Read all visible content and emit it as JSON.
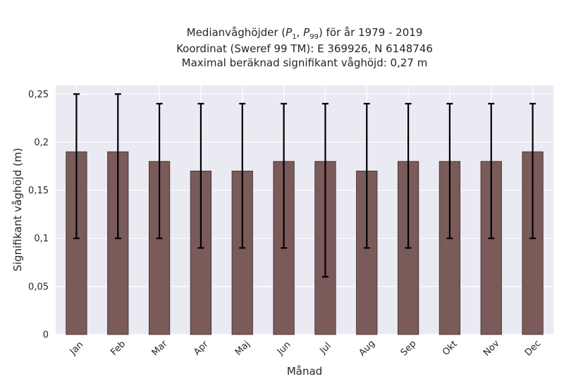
{
  "chart_data": {
    "type": "bar",
    "title_lines": [
      "Medianvåghöjder (P1, P99) för år 1979 - 2019",
      "Koordinat (Sweref 99 TM): E 369926, N 6148746",
      "Maximal beräknad signifikant våghöjd: 0,27 m"
    ],
    "xlabel": "Månad",
    "ylabel": "Signifikant våghöjd (m)",
    "categories": [
      "Jan",
      "Feb",
      "Mar",
      "Apr",
      "Maj",
      "Jun",
      "Jul",
      "Aug",
      "Sep",
      "Okt",
      "Nov",
      "Dec"
    ],
    "series": [
      {
        "values": [
          0.19,
          0.19,
          0.18,
          0.17,
          0.17,
          0.18,
          0.18,
          0.17,
          0.18,
          0.18,
          0.18,
          0.19
        ],
        "error_low": [
          0.1,
          0.1,
          0.1,
          0.09,
          0.09,
          0.09,
          0.06,
          0.09,
          0.09,
          0.1,
          0.1,
          0.1
        ],
        "error_high": [
          0.25,
          0.25,
          0.24,
          0.24,
          0.24,
          0.24,
          0.24,
          0.24,
          0.24,
          0.24,
          0.24,
          0.24
        ]
      }
    ],
    "ylim": [
      0,
      0.259
    ],
    "yticks": [
      0,
      0.05,
      0.1,
      0.15,
      0.2,
      0.25
    ],
    "ytick_labels": [
      "0",
      "0,05",
      "0,1",
      "0,15",
      "0,2",
      "0,25"
    ],
    "grid": true,
    "colors": {
      "bar": "#7b5a5a",
      "bar_edge": "#3a2a2a",
      "error_bar": "#000000",
      "plot_background": "#eaeaf2",
      "grid": "#ffffff"
    }
  }
}
